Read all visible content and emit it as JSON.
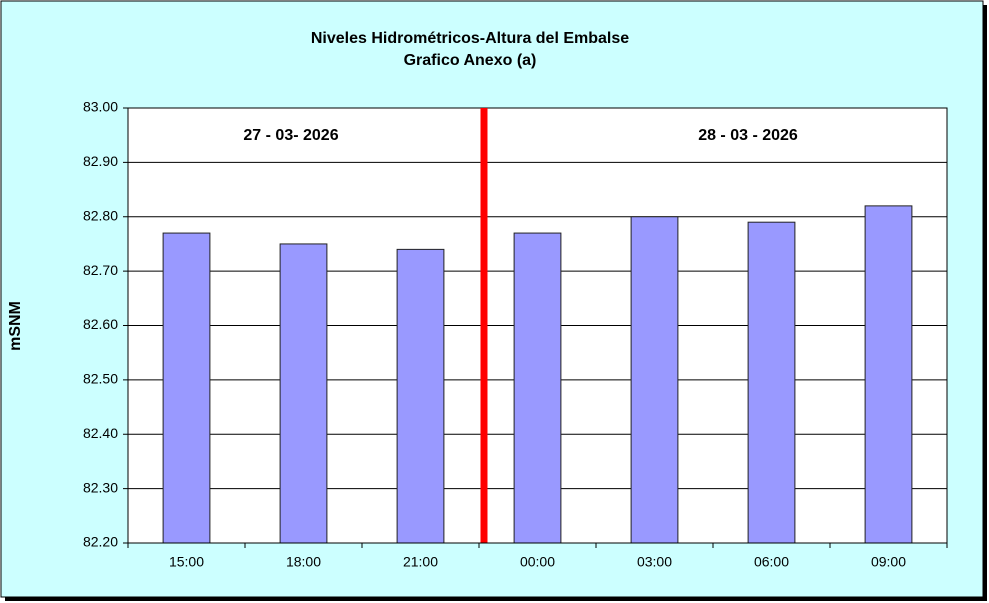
{
  "chart_data": {
    "type": "bar",
    "title": "Niveles Hidrométricos-Altura del Embalse",
    "subtitle": "Grafico Anexo (a)",
    "y_label": "mSNM",
    "annotations": [
      "27 - 03- 2026",
      "28 - 03 - 2026"
    ],
    "categories": [
      "15:00",
      "18:00",
      "21:00",
      "00:00",
      "03:00",
      "06:00",
      "09:00"
    ],
    "values": [
      82.77,
      82.75,
      82.74,
      82.77,
      82.8,
      82.79,
      82.82
    ],
    "color": "#9999ff",
    "ylim": [
      82.2,
      83.0
    ],
    "yticks": [
      {
        "value": 82.2,
        "label": "82.20"
      },
      {
        "value": 82.3,
        "label": "82.30"
      },
      {
        "value": 82.4,
        "label": "82.40"
      },
      {
        "value": 82.5,
        "label": "82.50"
      },
      {
        "value": 82.6,
        "label": "82.60"
      },
      {
        "value": 82.7,
        "label": "82.70"
      },
      {
        "value": 82.8,
        "label": "82.80"
      },
      {
        "value": 82.9,
        "label": "82.90"
      },
      {
        "value": 83.0,
        "label": "83.00"
      }
    ],
    "grid": true
  }
}
